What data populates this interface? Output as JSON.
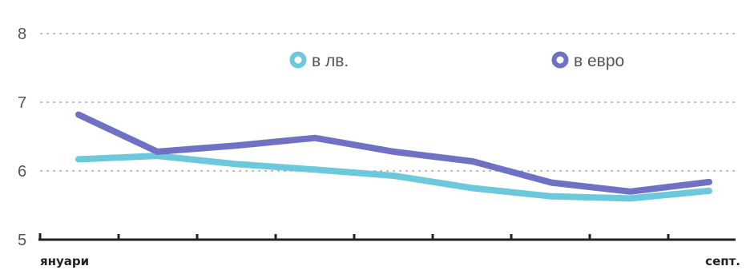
{
  "chart_data": {
    "type": "line",
    "x": [
      1,
      2,
      3,
      4,
      5,
      6,
      7,
      8,
      9
    ],
    "x_tick_labels": {
      "first": "януари",
      "last": "септ."
    },
    "ylim": [
      5,
      8
    ],
    "y_ticks": [
      5,
      6,
      7,
      8
    ],
    "grid": true,
    "legend_position": "top",
    "series": [
      {
        "name": "в лв.",
        "color": "#6cc9dc",
        "values": [
          6.17,
          6.22,
          6.1,
          6.02,
          5.93,
          5.75,
          5.63,
          5.6,
          5.71
        ]
      },
      {
        "name": "в евро",
        "color": "#6f72c4",
        "values": [
          6.82,
          6.28,
          6.37,
          6.48,
          6.28,
          6.14,
          5.83,
          5.7,
          5.84
        ]
      }
    ]
  }
}
